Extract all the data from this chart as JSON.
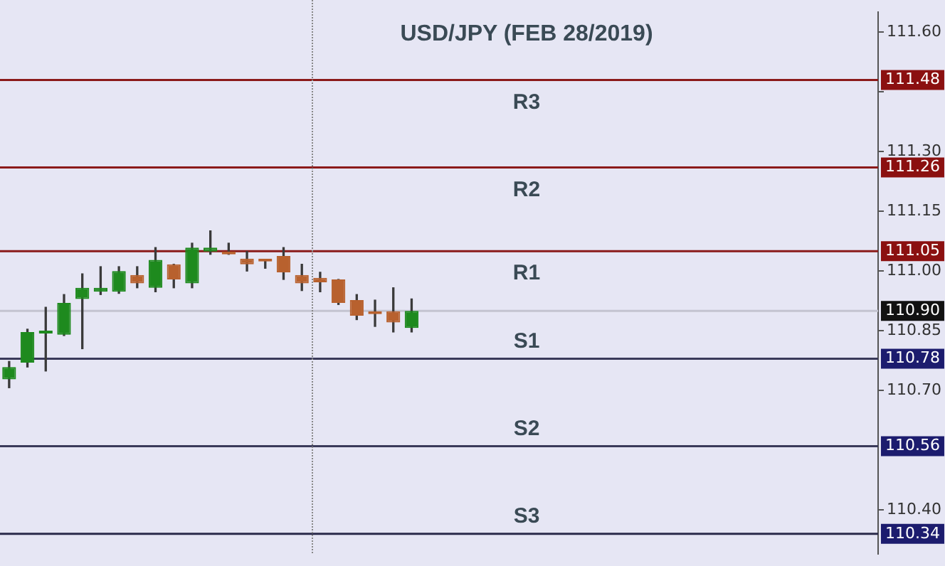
{
  "chart_data": {
    "type": "candlestick",
    "title": "USD/JPY (FEB 28/2019)",
    "categories": [
      null,
      null,
      null,
      null,
      null,
      null,
      null,
      null,
      null,
      null,
      null,
      null,
      null,
      null,
      null,
      null,
      null,
      null,
      null,
      null,
      null,
      null,
      null,
      null,
      null,
      null,
      null,
      null,
      null,
      null,
      null,
      null,
      null,
      null,
      null,
      null,
      null,
      null,
      null,
      null,
      null,
      null,
      null,
      null,
      null,
      null,
      null,
      null
    ],
    "ohlc": [
      [
        110.728,
        110.773,
        110.707,
        110.759
      ],
      [
        110.77,
        110.854,
        110.759,
        110.847
      ],
      [
        110.843,
        110.909,
        110.749,
        110.846
      ],
      [
        110.84,
        110.941,
        110.838,
        110.92
      ],
      [
        110.93,
        110.993,
        110.805,
        110.958
      ],
      [
        110.948,
        111.011,
        110.941,
        110.958
      ],
      [
        110.948,
        111.011,
        110.944,
        111.0
      ],
      [
        110.99,
        111.011,
        110.958,
        110.969
      ],
      [
        110.958,
        111.059,
        110.948,
        111.028
      ],
      [
        111.017,
        111.017,
        110.958,
        110.979
      ],
      [
        110.969,
        111.07,
        110.958,
        111.059
      ],
      [
        111.049,
        111.101,
        111.042,
        111.059
      ],
      [
        111.049,
        111.07,
        111.042,
        111.042
      ],
      [
        111.031,
        111.049,
        111.0,
        111.017
      ],
      [
        111.028,
        111.028,
        111.007,
        111.024
      ],
      [
        111.038,
        111.059,
        110.979,
        110.997
      ],
      [
        110.99,
        111.017,
        110.951,
        110.969
      ],
      [
        110.983,
        110.997,
        110.948,
        110.972
      ],
      [
        110.979,
        110.979,
        110.916,
        110.92
      ],
      [
        110.927,
        110.941,
        110.878,
        110.888
      ],
      [
        110.895,
        110.927,
        110.861,
        110.892
      ],
      [
        110.899,
        110.958,
        110.847,
        110.871
      ],
      [
        110.857,
        110.93,
        110.847,
        110.9
      ],
      null,
      null,
      null,
      null,
      null,
      null,
      null,
      null,
      null,
      null,
      null,
      null,
      null,
      null,
      null,
      null,
      null,
      null,
      null,
      null,
      null,
      null,
      null,
      null,
      null
    ],
    "annotations": [
      "111.48",
      "111.26",
      "111.05",
      "110.90",
      "110.78",
      "110.56",
      "110.34"
    ],
    "colors": [
      "#1e8a1e",
      "#1e8a1e",
      "#1e8a1e",
      "#1e8a1e",
      "#1e8a1e",
      "#1e8a1e",
      "#1e8a1e",
      "#b8612e",
      "#1e8a1e",
      "#b8612e",
      "#1e8a1e",
      "#1e8a1e",
      "#b8612e",
      "#b8612e",
      "#b8612e",
      "#b8612e",
      "#b8612e",
      "#b8612e",
      "#b8612e",
      "#b8612e",
      "#b8612e",
      "#b8612e",
      "#1e8a1e",
      null,
      null,
      null,
      null,
      null,
      null,
      null,
      null,
      null,
      null,
      null,
      null,
      null,
      null,
      null,
      null,
      null,
      null,
      null,
      null,
      null,
      null,
      null,
      null,
      null
    ],
    "ylim": [
      110.29,
      111.65
    ],
    "yticks": [
      {
        "value": 111.6,
        "label": "111.60"
      },
      {
        "value": 111.45,
        "label": null
      },
      {
        "value": 111.3,
        "label": "111.30"
      },
      {
        "value": 111.15,
        "label": "111.15"
      },
      {
        "value": 111.0,
        "label": "111.00"
      },
      {
        "value": 110.85,
        "label": "110.85"
      },
      {
        "value": 110.7,
        "label": "110.70"
      },
      {
        "value": 110.4,
        "label": "110.40"
      }
    ],
    "tick_labels": "y",
    "grid": false,
    "legend": false,
    "ref_lines": [
      {
        "axis": "y",
        "value": 111.48,
        "label": "R3",
        "color": "#8b1a1a"
      },
      {
        "axis": "y",
        "value": 111.26,
        "label": "R2",
        "color": "#8b1a1a"
      },
      {
        "axis": "y",
        "value": 111.05,
        "label": "R1",
        "color": "#8b1a1a"
      },
      {
        "axis": "y",
        "value": 110.9,
        "label": null,
        "color": "#c4c4d0"
      },
      {
        "axis": "y",
        "value": 110.78,
        "label": "S1",
        "color": "#3a3a5a"
      },
      {
        "axis": "y",
        "value": 110.56,
        "label": "S2",
        "color": "#3a3a5a"
      },
      {
        "axis": "y",
        "value": 110.34,
        "label": "S3",
        "color": "#2a2a4a"
      }
    ]
  }
}
